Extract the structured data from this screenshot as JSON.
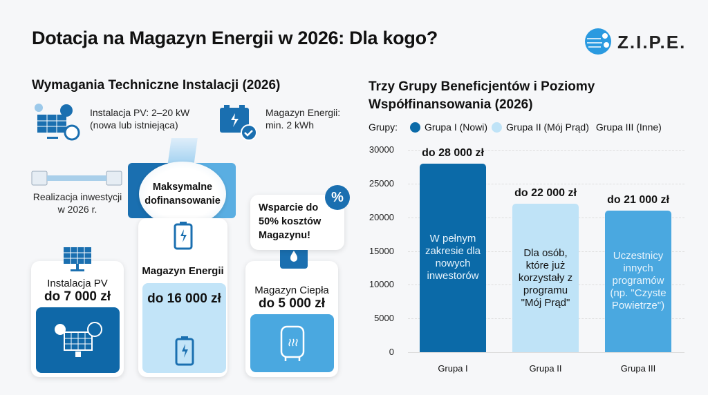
{
  "title": "Dotacja na Magazyn Energii w 2026: Dla kogo?",
  "logo": {
    "text": "Z.I.P.E."
  },
  "colors": {
    "dark": "#0b6aa8",
    "light": "#bfe3f7",
    "mid": "#4aa8e0",
    "accent": "#1a7ac0"
  },
  "left": {
    "heading": "Wymagania Techniczne Instalacji (2026)",
    "req_pv": [
      "Instalacja PV: 2–20 kW",
      "(nowa lub istniejąca)"
    ],
    "req_storage": [
      "Magazyn Energii:",
      "min. 2 kWh"
    ],
    "timeline": [
      "Realizacja inwestycji",
      "w 2026 r."
    ],
    "center": [
      "Maksymalne",
      "dofinansowanie"
    ],
    "bubble": [
      "Wsparcie do",
      "50% kosztów",
      "Magazynu!"
    ],
    "badge": "%",
    "cards": [
      {
        "name": "Instalacja PV",
        "amount": "do 7 000 zł",
        "icon": "solar-panel-icon"
      },
      {
        "name": "Magazyn Energii",
        "amount": "do 16 000 zł",
        "icon": "battery-icon"
      },
      {
        "name": "Magazyn Ciepła",
        "amount": "do 5 000 zł",
        "icon": "boiler-icon"
      }
    ]
  },
  "chart_data": {
    "type": "bar",
    "title": "Trzy Grupy Beneficjentów i Poziomy Współfinansowania (2026)",
    "legend_label": "Grupy:",
    "legend": [
      "Grupa I (Nowi)",
      "Grupa II (Mój Prąd)",
      "Grupa III (Inne)"
    ],
    "legend_placement": "top",
    "categories": [
      "Grupa I",
      "Grupa II",
      "Grupa III"
    ],
    "values": [
      28000,
      22000,
      21000
    ],
    "data_labels": [
      "do 28 000 zł",
      "do 22 000 zł",
      "do 21 000 zł"
    ],
    "bar_texts": [
      "W pełnym zakresie dla nowych inwestorów",
      "Dla osób, które już korzystały z programu \"Mój Prąd\"",
      "Uczestnicy innych programów (np. \"Czyste Powietrze\")"
    ],
    "bar_colors": [
      "#0b6aa8",
      "#bfe3f7",
      "#4aa8e0"
    ],
    "bar_text_colors": [
      "#e8f4fc",
      "#111111",
      "#e8f4fc"
    ],
    "yticks": [
      "0",
      "5000",
      "10000",
      "15000",
      "20000",
      "25000",
      "30000"
    ],
    "ylim": [
      0,
      30000
    ],
    "grid": true
  }
}
